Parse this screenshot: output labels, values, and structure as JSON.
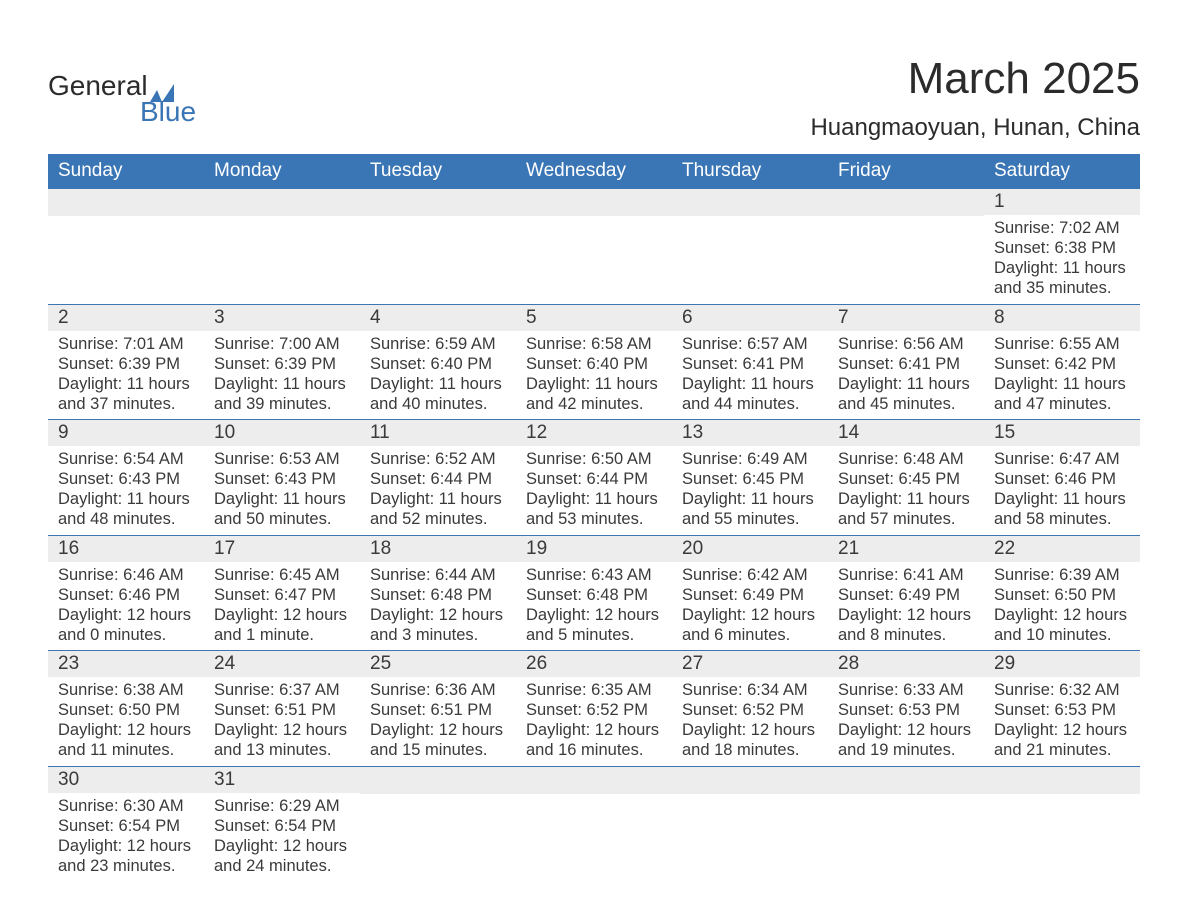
{
  "logo": {
    "text1": "General",
    "text2": "Blue",
    "accent_color": "#3a75b5"
  },
  "title": {
    "month": "March 2025",
    "location": "Huangmaoyuan, Hunan, China"
  },
  "colors": {
    "header_bg": "#3a75b5",
    "header_text": "#ffffff",
    "daynum_bg": "#ededed",
    "row_border": "#3a75b5",
    "body_text": "#3a3a3a",
    "page_bg": "#ffffff"
  },
  "typography": {
    "title_fontsize": 44,
    "location_fontsize": 24,
    "header_fontsize": 19,
    "daynum_fontsize": 19,
    "body_fontsize": 16.5
  },
  "layout": {
    "columns": 7,
    "cell_width_percent": 14.28
  },
  "days_of_week": [
    "Sunday",
    "Monday",
    "Tuesday",
    "Wednesday",
    "Thursday",
    "Friday",
    "Saturday"
  ],
  "weeks": [
    [
      null,
      null,
      null,
      null,
      null,
      null,
      {
        "n": "1",
        "sunrise": "Sunrise: 7:02 AM",
        "sunset": "Sunset: 6:38 PM",
        "daylight": "Daylight: 11 hours and 35 minutes."
      }
    ],
    [
      {
        "n": "2",
        "sunrise": "Sunrise: 7:01 AM",
        "sunset": "Sunset: 6:39 PM",
        "daylight": "Daylight: 11 hours and 37 minutes."
      },
      {
        "n": "3",
        "sunrise": "Sunrise: 7:00 AM",
        "sunset": "Sunset: 6:39 PM",
        "daylight": "Daylight: 11 hours and 39 minutes."
      },
      {
        "n": "4",
        "sunrise": "Sunrise: 6:59 AM",
        "sunset": "Sunset: 6:40 PM",
        "daylight": "Daylight: 11 hours and 40 minutes."
      },
      {
        "n": "5",
        "sunrise": "Sunrise: 6:58 AM",
        "sunset": "Sunset: 6:40 PM",
        "daylight": "Daylight: 11 hours and 42 minutes."
      },
      {
        "n": "6",
        "sunrise": "Sunrise: 6:57 AM",
        "sunset": "Sunset: 6:41 PM",
        "daylight": "Daylight: 11 hours and 44 minutes."
      },
      {
        "n": "7",
        "sunrise": "Sunrise: 6:56 AM",
        "sunset": "Sunset: 6:41 PM",
        "daylight": "Daylight: 11 hours and 45 minutes."
      },
      {
        "n": "8",
        "sunrise": "Sunrise: 6:55 AM",
        "sunset": "Sunset: 6:42 PM",
        "daylight": "Daylight: 11 hours and 47 minutes."
      }
    ],
    [
      {
        "n": "9",
        "sunrise": "Sunrise: 6:54 AM",
        "sunset": "Sunset: 6:43 PM",
        "daylight": "Daylight: 11 hours and 48 minutes."
      },
      {
        "n": "10",
        "sunrise": "Sunrise: 6:53 AM",
        "sunset": "Sunset: 6:43 PM",
        "daylight": "Daylight: 11 hours and 50 minutes."
      },
      {
        "n": "11",
        "sunrise": "Sunrise: 6:52 AM",
        "sunset": "Sunset: 6:44 PM",
        "daylight": "Daylight: 11 hours and 52 minutes."
      },
      {
        "n": "12",
        "sunrise": "Sunrise: 6:50 AM",
        "sunset": "Sunset: 6:44 PM",
        "daylight": "Daylight: 11 hours and 53 minutes."
      },
      {
        "n": "13",
        "sunrise": "Sunrise: 6:49 AM",
        "sunset": "Sunset: 6:45 PM",
        "daylight": "Daylight: 11 hours and 55 minutes."
      },
      {
        "n": "14",
        "sunrise": "Sunrise: 6:48 AM",
        "sunset": "Sunset: 6:45 PM",
        "daylight": "Daylight: 11 hours and 57 minutes."
      },
      {
        "n": "15",
        "sunrise": "Sunrise: 6:47 AM",
        "sunset": "Sunset: 6:46 PM",
        "daylight": "Daylight: 11 hours and 58 minutes."
      }
    ],
    [
      {
        "n": "16",
        "sunrise": "Sunrise: 6:46 AM",
        "sunset": "Sunset: 6:46 PM",
        "daylight": "Daylight: 12 hours and 0 minutes."
      },
      {
        "n": "17",
        "sunrise": "Sunrise: 6:45 AM",
        "sunset": "Sunset: 6:47 PM",
        "daylight": "Daylight: 12 hours and 1 minute."
      },
      {
        "n": "18",
        "sunrise": "Sunrise: 6:44 AM",
        "sunset": "Sunset: 6:48 PM",
        "daylight": "Daylight: 12 hours and 3 minutes."
      },
      {
        "n": "19",
        "sunrise": "Sunrise: 6:43 AM",
        "sunset": "Sunset: 6:48 PM",
        "daylight": "Daylight: 12 hours and 5 minutes."
      },
      {
        "n": "20",
        "sunrise": "Sunrise: 6:42 AM",
        "sunset": "Sunset: 6:49 PM",
        "daylight": "Daylight: 12 hours and 6 minutes."
      },
      {
        "n": "21",
        "sunrise": "Sunrise: 6:41 AM",
        "sunset": "Sunset: 6:49 PM",
        "daylight": "Daylight: 12 hours and 8 minutes."
      },
      {
        "n": "22",
        "sunrise": "Sunrise: 6:39 AM",
        "sunset": "Sunset: 6:50 PM",
        "daylight": "Daylight: 12 hours and 10 minutes."
      }
    ],
    [
      {
        "n": "23",
        "sunrise": "Sunrise: 6:38 AM",
        "sunset": "Sunset: 6:50 PM",
        "daylight": "Daylight: 12 hours and 11 minutes."
      },
      {
        "n": "24",
        "sunrise": "Sunrise: 6:37 AM",
        "sunset": "Sunset: 6:51 PM",
        "daylight": "Daylight: 12 hours and 13 minutes."
      },
      {
        "n": "25",
        "sunrise": "Sunrise: 6:36 AM",
        "sunset": "Sunset: 6:51 PM",
        "daylight": "Daylight: 12 hours and 15 minutes."
      },
      {
        "n": "26",
        "sunrise": "Sunrise: 6:35 AM",
        "sunset": "Sunset: 6:52 PM",
        "daylight": "Daylight: 12 hours and 16 minutes."
      },
      {
        "n": "27",
        "sunrise": "Sunrise: 6:34 AM",
        "sunset": "Sunset: 6:52 PM",
        "daylight": "Daylight: 12 hours and 18 minutes."
      },
      {
        "n": "28",
        "sunrise": "Sunrise: 6:33 AM",
        "sunset": "Sunset: 6:53 PM",
        "daylight": "Daylight: 12 hours and 19 minutes."
      },
      {
        "n": "29",
        "sunrise": "Sunrise: 6:32 AM",
        "sunset": "Sunset: 6:53 PM",
        "daylight": "Daylight: 12 hours and 21 minutes."
      }
    ],
    [
      {
        "n": "30",
        "sunrise": "Sunrise: 6:30 AM",
        "sunset": "Sunset: 6:54 PM",
        "daylight": "Daylight: 12 hours and 23 minutes."
      },
      {
        "n": "31",
        "sunrise": "Sunrise: 6:29 AM",
        "sunset": "Sunset: 6:54 PM",
        "daylight": "Daylight: 12 hours and 24 minutes."
      },
      null,
      null,
      null,
      null,
      null
    ]
  ]
}
